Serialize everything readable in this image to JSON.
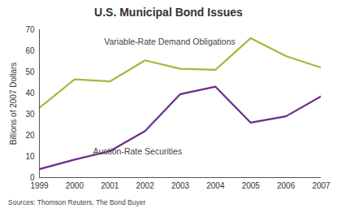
{
  "chart_data": {
    "type": "line",
    "title": "U.S. Municipal Bond Issues",
    "y_label": "Billions of 2007 Dollars",
    "x": [
      1999,
      2000,
      2001,
      2002,
      2003,
      2004,
      2005,
      2006,
      2007
    ],
    "series": [
      {
        "name": "Variable-Rate Demand Obligations",
        "color": "#9cbd3c",
        "values": [
          33,
          46.5,
          45.5,
          55.5,
          51.5,
          51,
          66,
          57.5,
          52
        ]
      },
      {
        "name": "Auction-Rate Securities",
        "color": "#6b2d87",
        "values": [
          4,
          8.5,
          12.5,
          22,
          39.5,
          43,
          26,
          29,
          38.5
        ]
      }
    ],
    "xlim": [
      1999,
      2007
    ],
    "xticks": [
      1999,
      2000,
      2001,
      2002,
      2003,
      2004,
      2005,
      2006,
      2007
    ],
    "ylim": [
      0,
      70
    ],
    "yticks": [
      0,
      10,
      20,
      30,
      40,
      50,
      60,
      70
    ],
    "grid": false,
    "source": "Sources: Thomson Reuters, The Bond Buyer"
  }
}
